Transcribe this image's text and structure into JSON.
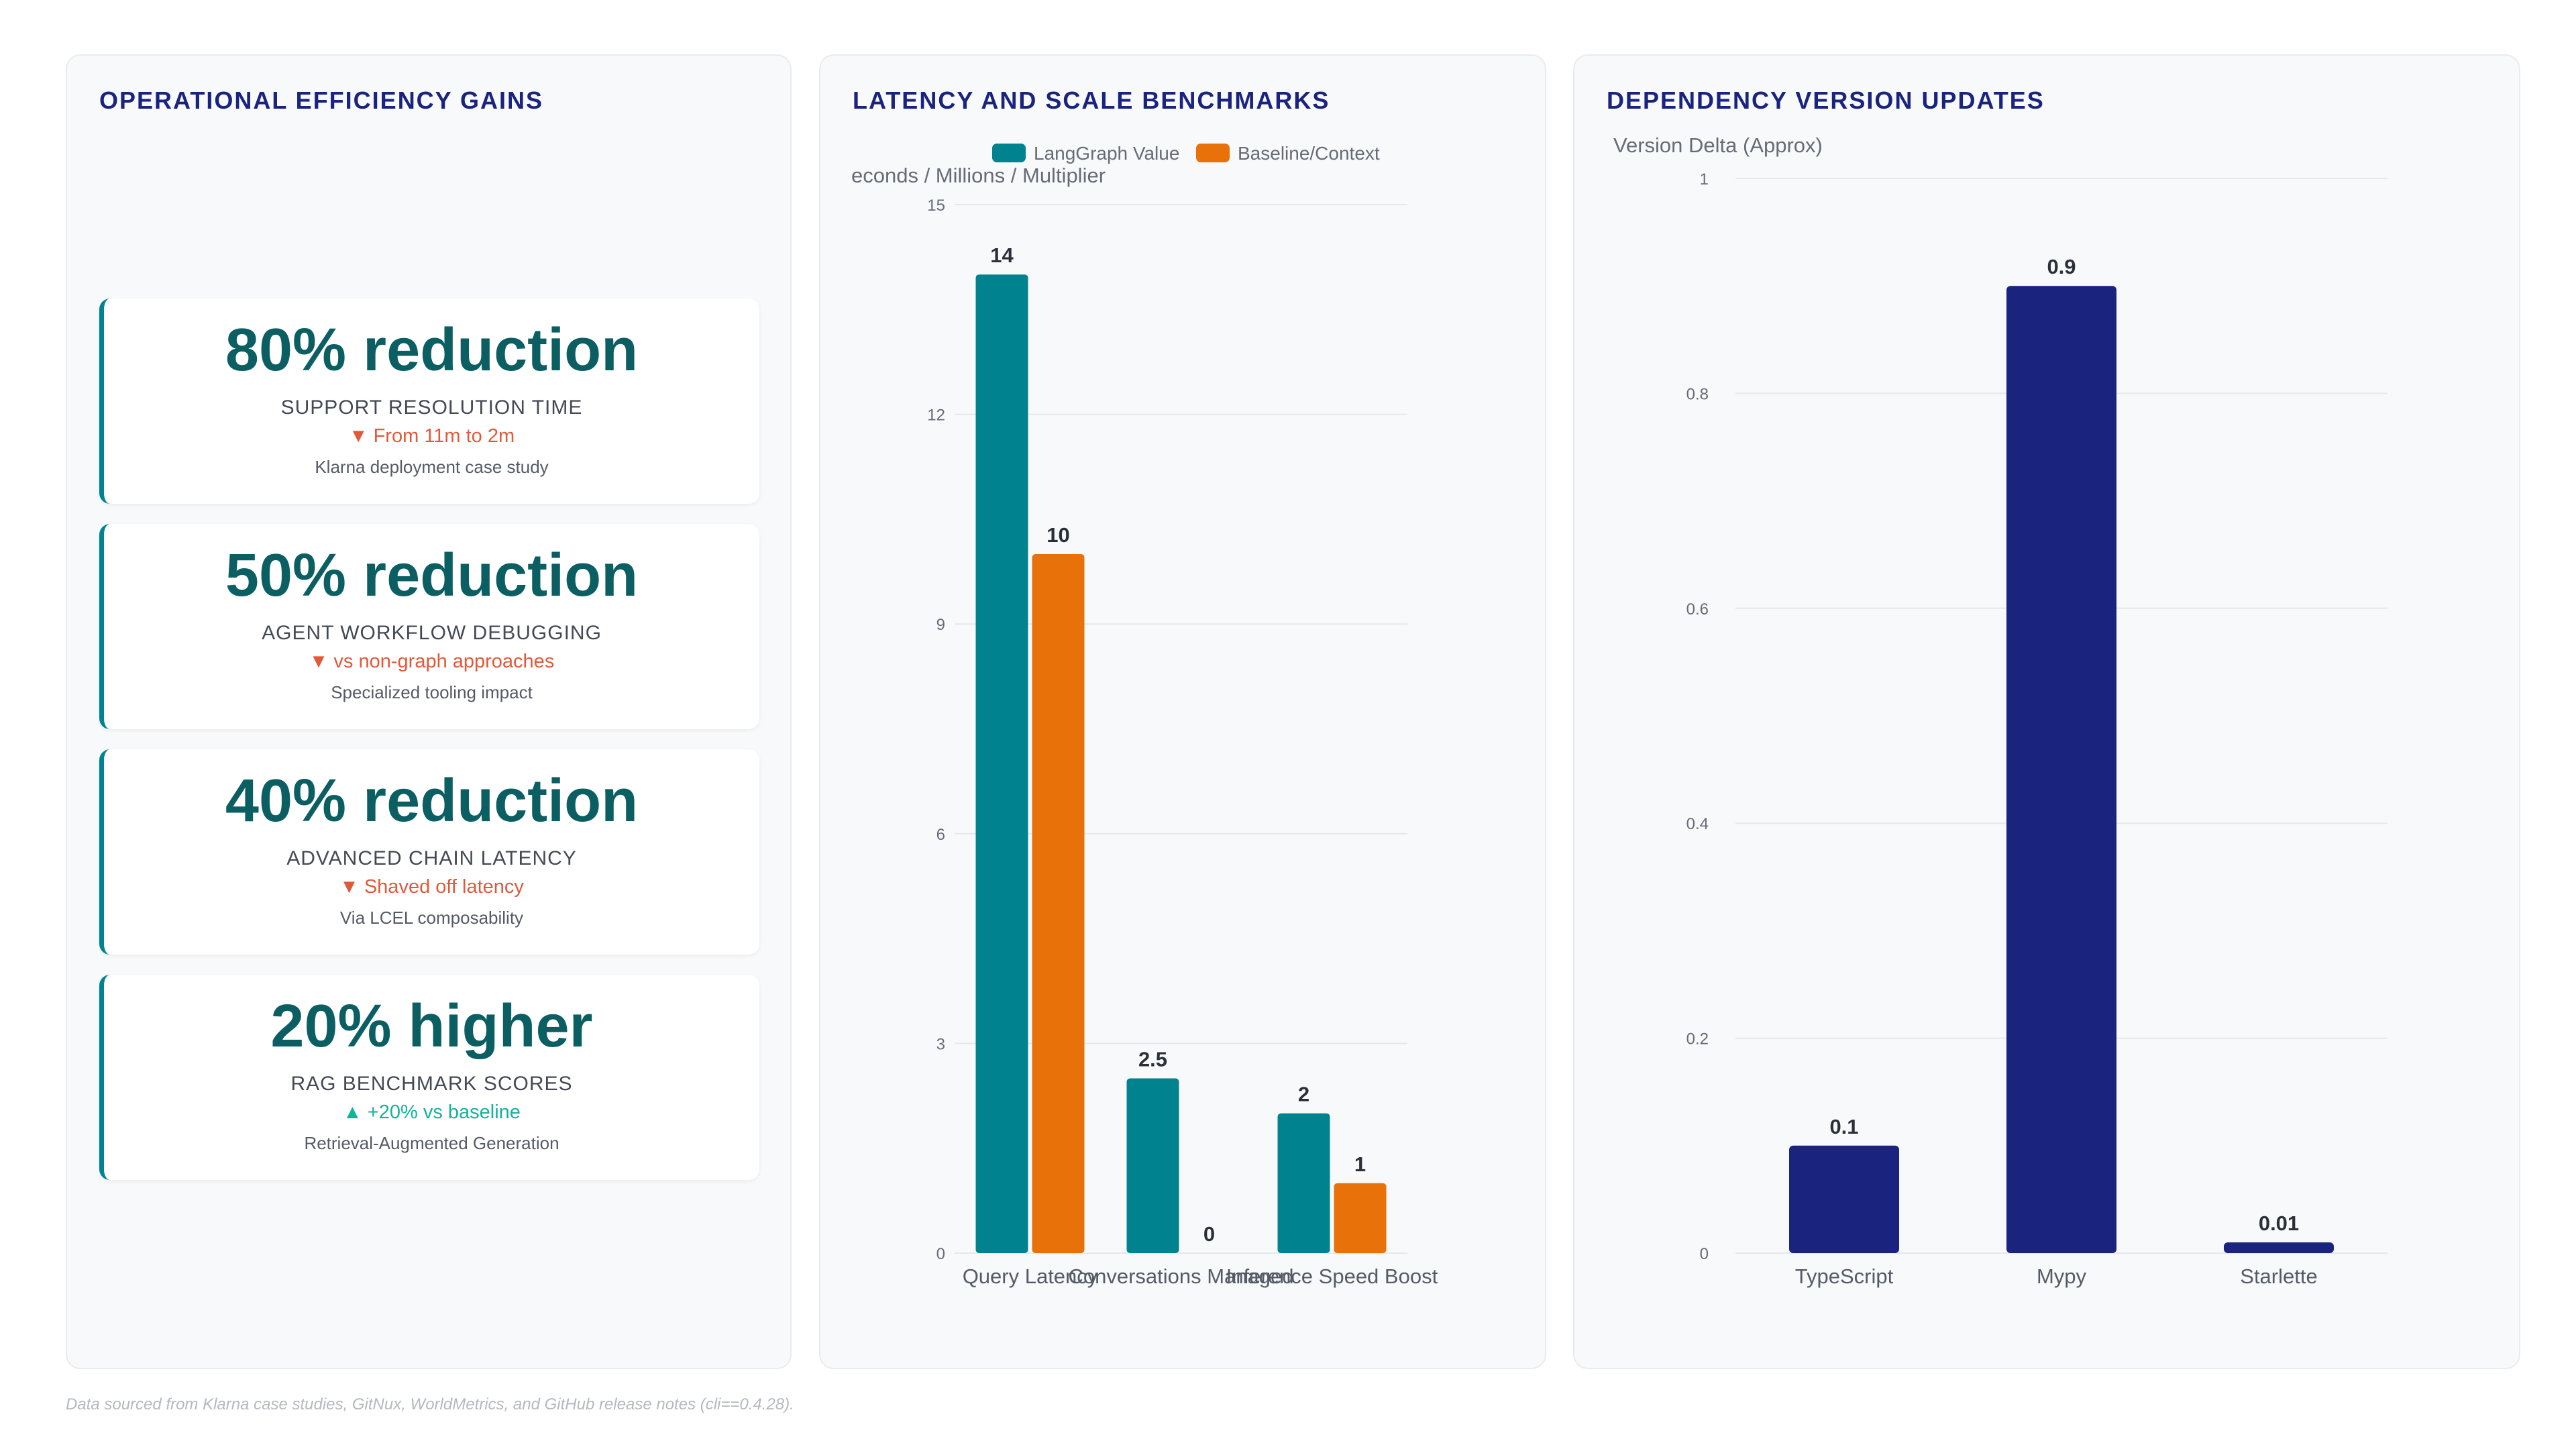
{
  "footer": "Data sourced from Klarna case studies, GitNux, WorldMetrics, and GitHub release notes (cli==0.4.28).",
  "panel1": {
    "title": "OPERATIONAL EFFICIENCY GAINS",
    "cards": [
      {
        "value": "80% reduction",
        "label": "SUPPORT RESOLUTION TIME",
        "delta": "▼ From 11m to 2m",
        "direction": "down",
        "note": "Klarna deployment case study"
      },
      {
        "value": "50% reduction",
        "label": "AGENT WORKFLOW DEBUGGING",
        "delta": "▼ vs non-graph approaches",
        "direction": "down",
        "note": "Specialized tooling impact"
      },
      {
        "value": "40% reduction",
        "label": "ADVANCED CHAIN LATENCY",
        "delta": "▼ Shaved off latency",
        "direction": "down",
        "note": "Via LCEL composability"
      },
      {
        "value": "20% higher",
        "label": "RAG BENCHMARK SCORES",
        "delta": "▲ +20% vs baseline",
        "direction": "up",
        "note": "Retrieval-Augmented Generation"
      }
    ]
  },
  "panel2": {
    "title": "LATENCY AND SCALE BENCHMARKS"
  },
  "panel3": {
    "title": "DEPENDENCY VERSION UPDATES"
  },
  "colors": {
    "teal": "#00838f",
    "orange": "#e8710a",
    "navy": "#1a237e",
    "down": "#e05a3a",
    "up": "#12b39a"
  },
  "chart_data": [
    {
      "type": "bar",
      "categories": [
        "Query Latency",
        "Conversations Managed",
        "Inference Speed Boost"
      ],
      "series": [
        {
          "name": "LangGraph Value",
          "values": [
            14,
            2.5,
            2
          ]
        },
        {
          "name": "Baseline/Context",
          "values": [
            10,
            0,
            1
          ]
        }
      ],
      "title": "",
      "xlabel": "",
      "ylabel": "econds / Millions / Multiplier",
      "ylim": [
        0,
        15
      ],
      "yticks": [
        "0",
        "3",
        "6",
        "9",
        "12",
        "15"
      ],
      "grid": true,
      "legend": "top"
    },
    {
      "type": "bar",
      "categories": [
        "TypeScript",
        "Mypy",
        "Starlette"
      ],
      "values": [
        0.1,
        0.9,
        0.01
      ],
      "title": "",
      "xlabel": "",
      "ylabel": "Version Delta (Approx)",
      "ylim": [
        0,
        1
      ],
      "yticks": [
        "0",
        "0.2",
        "0.4",
        "0.6",
        "0.8",
        "1"
      ],
      "grid": true,
      "legend": "none"
    }
  ]
}
